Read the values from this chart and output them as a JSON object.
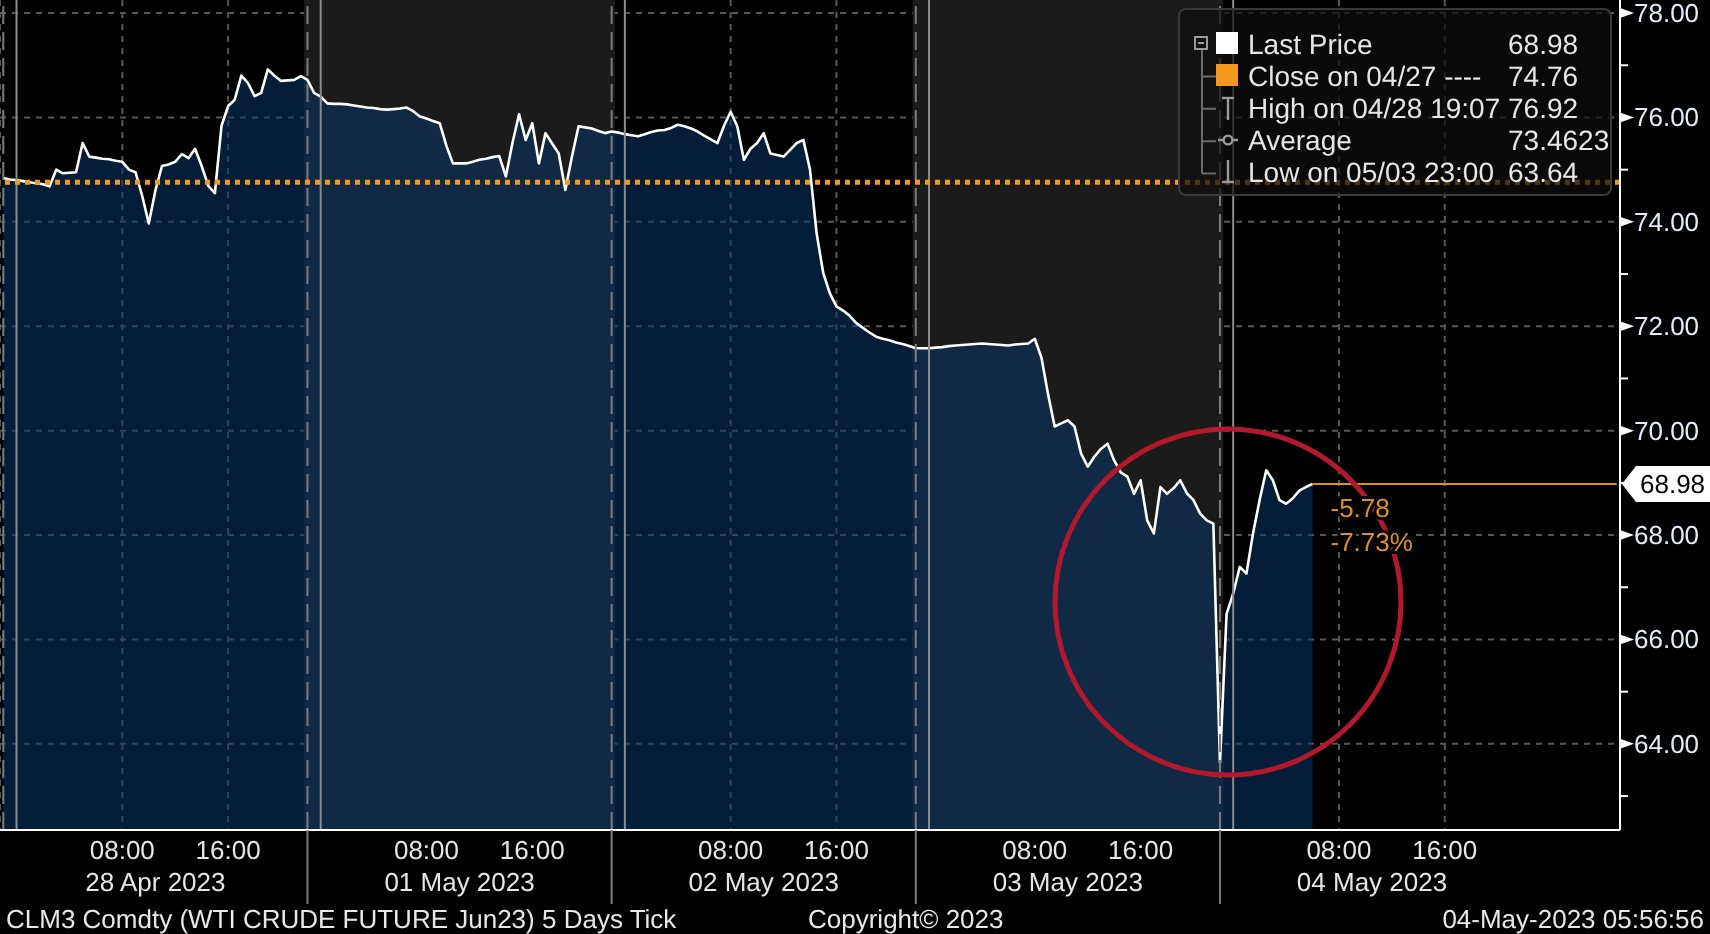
{
  "chart_data": {
    "type": "area",
    "categories": [
      null,
      null,
      null,
      null,
      null,
      null,
      null,
      null,
      null,
      null,
      null,
      null,
      null,
      null,
      null,
      null,
      null,
      null,
      "08:00",
      null,
      null,
      null,
      null,
      null,
      null,
      null,
      null,
      null,
      null,
      null,
      null,
      null,
      null,
      null,
      "16:00",
      null,
      null,
      null,
      null,
      null,
      null,
      null,
      null,
      null,
      null,
      null,
      null,
      null,
      null,
      null,
      null,
      null,
      null,
      null,
      null,
      null,
      null,
      null,
      null,
      null,
      null,
      null,
      null,
      null,
      "08:00",
      null,
      null,
      null,
      null,
      null,
      null,
      null,
      null,
      null,
      null,
      null,
      null,
      null,
      null,
      null,
      "16:00",
      null,
      null,
      null,
      null,
      null,
      null,
      null,
      null,
      null,
      null,
      null,
      null,
      null,
      null,
      null,
      null,
      null,
      null,
      null,
      null,
      null,
      null,
      null,
      null,
      null,
      null,
      null,
      null,
      null,
      "08:00",
      null,
      null,
      null,
      null,
      null,
      null,
      null,
      null,
      null,
      null,
      null,
      null,
      null,
      null,
      null,
      "16:00",
      null,
      null,
      null,
      null,
      null,
      null,
      null,
      null,
      null,
      null,
      null,
      null,
      null,
      null,
      null,
      null,
      null,
      null,
      null,
      null,
      null,
      null,
      null,
      null,
      null,
      null,
      null,
      null,
      null,
      "08:00",
      null,
      null,
      null,
      null,
      null,
      null,
      null,
      null,
      null,
      null,
      null,
      null,
      null,
      null,
      null,
      "16:00",
      null,
      null,
      null,
      null,
      null,
      null,
      null,
      null,
      null,
      null,
      null,
      null,
      null,
      null,
      null,
      null,
      null,
      null,
      null,
      null,
      null,
      null,
      null,
      null,
      null,
      null,
      null,
      null,
      null,
      "08:00",
      null,
      null,
      null,
      null,
      null,
      null,
      null,
      null,
      null,
      null,
      null,
      null,
      null,
      null,
      null,
      "16:00",
      null,
      null,
      null,
      null,
      null,
      null,
      null,
      null,
      null,
      null,
      null,
      null,
      null,
      null,
      null,
      null,
      null,
      null,
      null,
      null,
      null,
      null,
      null,
      null,
      null,
      null
    ],
    "series": [
      {
        "name": "Last Price",
        "color": "#ffffff",
        "values": [
          74.84,
          74.81,
          74.8,
          74.78,
          74.76,
          74.74,
          74.72,
          74.68,
          75.0,
          74.93,
          74.94,
          74.95,
          75.51,
          75.25,
          75.23,
          75.21,
          75.2,
          75.17,
          75.15,
          75.0,
          74.95,
          74.5,
          73.97,
          74.6,
          75.07,
          75.1,
          75.15,
          75.3,
          75.22,
          75.4,
          75.07,
          74.69,
          74.55,
          75.84,
          76.22,
          76.34,
          76.8,
          76.66,
          76.41,
          76.47,
          76.92,
          76.8,
          76.7,
          76.71,
          76.72,
          76.79,
          76.72,
          76.47,
          76.4,
          76.27,
          76.26,
          76.26,
          76.25,
          76.23,
          76.21,
          76.19,
          76.18,
          76.16,
          76.15,
          76.16,
          76.17,
          76.19,
          76.12,
          76.02,
          75.98,
          75.93,
          75.89,
          75.46,
          75.12,
          75.12,
          75.12,
          75.15,
          75.19,
          75.21,
          75.24,
          75.26,
          74.87,
          75.51,
          76.06,
          75.57,
          75.89,
          75.12,
          75.7,
          75.5,
          75.31,
          74.61,
          75.25,
          75.83,
          75.81,
          75.79,
          75.74,
          75.7,
          75.73,
          75.71,
          75.68,
          75.66,
          75.64,
          75.68,
          75.72,
          75.75,
          75.76,
          75.8,
          75.86,
          75.83,
          75.79,
          75.73,
          75.65,
          75.58,
          75.51,
          75.84,
          76.11,
          75.83,
          75.19,
          75.4,
          75.51,
          75.7,
          75.31,
          75.28,
          75.25,
          75.38,
          75.51,
          75.57,
          75.0,
          73.78,
          73.02,
          72.63,
          72.38,
          72.3,
          72.2,
          72.06,
          71.97,
          71.88,
          71.8,
          71.76,
          71.73,
          71.69,
          71.66,
          71.62,
          71.58,
          71.58,
          71.58,
          71.59,
          71.6,
          71.62,
          71.63,
          71.64,
          71.65,
          71.66,
          71.67,
          71.66,
          71.65,
          71.64,
          71.63,
          71.65,
          71.66,
          71.67,
          71.76,
          71.4,
          70.7,
          70.08,
          70.14,
          70.2,
          70.08,
          69.56,
          69.31,
          69.5,
          69.65,
          69.75,
          69.43,
          69.2,
          69.12,
          68.79,
          69.05,
          68.28,
          68.03,
          68.92,
          68.79,
          68.9,
          69.05,
          68.8,
          68.67,
          68.41,
          68.28,
          68.22,
          63.64,
          66.49,
          66.88,
          67.39,
          67.26,
          68.03,
          68.67,
          69.24,
          69.05,
          68.67,
          68.6,
          68.7,
          68.85,
          68.92,
          68.98,
          null,
          null,
          null,
          null,
          null,
          null,
          null,
          null,
          null,
          null,
          null,
          null,
          null,
          null,
          null,
          null,
          null,
          null,
          null,
          null,
          null,
          null,
          null,
          null,
          null,
          null,
          null,
          null,
          null,
          null,
          null,
          null,
          null,
          null,
          null,
          null,
          null,
          null,
          null,
          null,
          null,
          null,
          null,
          null,
          null,
          null
        ]
      }
    ],
    "ylim": [
      62.35,
      78.25
    ],
    "yticks": [
      {
        "value": 63,
        "label": null
      },
      {
        "value": 64,
        "label": "64.00"
      },
      {
        "value": 65,
        "label": null
      },
      {
        "value": 66,
        "label": "66.00"
      },
      {
        "value": 67,
        "label": null
      },
      {
        "value": 68,
        "label": "68.00"
      },
      {
        "value": 69,
        "label": null
      },
      {
        "value": 70,
        "label": "70.00"
      },
      {
        "value": 71,
        "label": null
      },
      {
        "value": 72,
        "label": "72.00"
      },
      {
        "value": 73,
        "label": null
      },
      {
        "value": 74,
        "label": "74.00"
      },
      {
        "value": 75,
        "label": null
      },
      {
        "value": 76,
        "label": "76.00"
      },
      {
        "value": 77,
        "label": null
      },
      {
        "value": 78,
        "label": "78.00"
      }
    ],
    "grid": true,
    "legend": "top right",
    "ref_lines": [
      {
        "axis": "y",
        "value": 74.76,
        "label": "Close on 04/27 ----",
        "color": "#f39a1e",
        "line_style": "dotted"
      },
      {
        "axis": "y",
        "value": 68.98,
        "label": "68.98",
        "color": "#e0901e",
        "line_style": "solid"
      }
    ],
    "annotations": [
      "68.98",
      "74.76",
      "High on 04/28 19:07",
      "76.92",
      "Average",
      "73.4623",
      "Low on 05/03 23:00",
      "63.64",
      "-5.78",
      "-7.73%",
      "28 Apr 2023",
      "01 May 2023",
      "02 May 2023",
      "03 May 2023",
      "04 May 2023",
      "CLM3 Comdty (WTI CRUDE FUTURE Jun23) 5 Days Tick",
      "Copyright© 2023",
      "04-May-2023 05:56:56"
    ]
  }
}
